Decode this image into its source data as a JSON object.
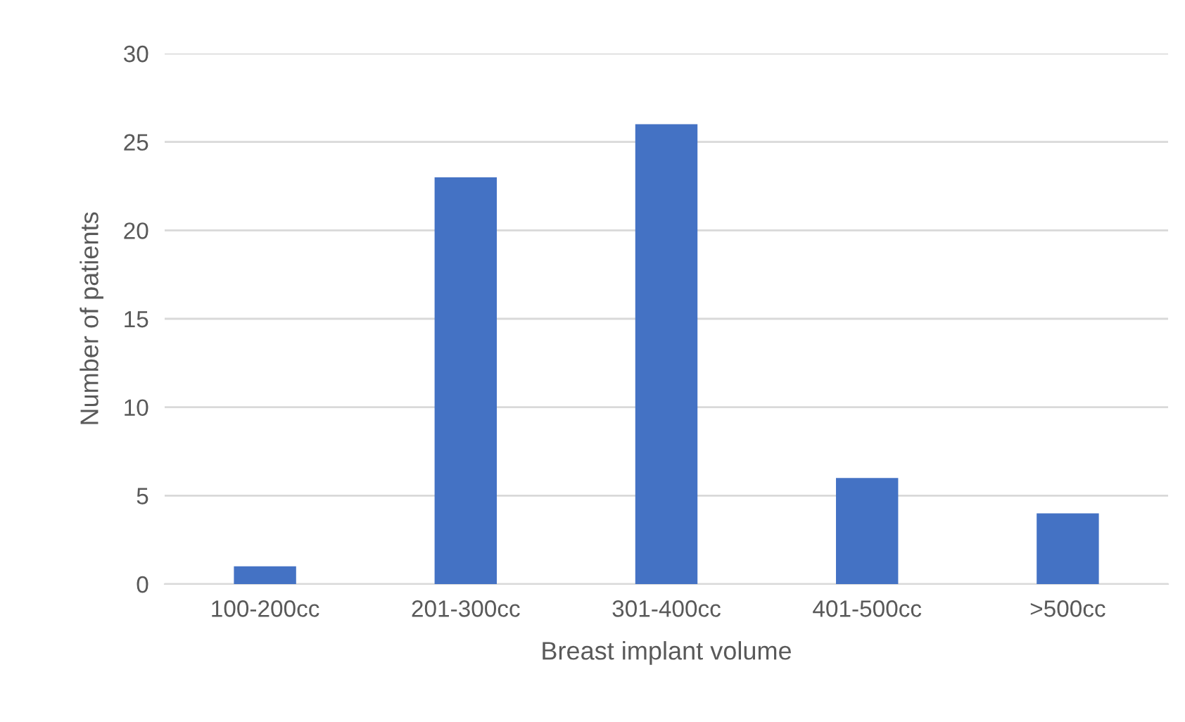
{
  "chart_data": {
    "type": "bar",
    "xlabel": "Breast implant volume",
    "ylabel": "Number of patients",
    "categories": [
      "100-200cc",
      "201-300cc",
      "301-400cc",
      "401-500cc",
      ">500cc"
    ],
    "values": [
      1,
      23,
      26,
      6,
      4
    ],
    "color": "#4472c4",
    "ylim": [
      0,
      30
    ],
    "yticks": [
      0,
      5,
      10,
      15,
      20,
      25,
      30
    ],
    "grid": "y",
    "legend": false
  }
}
